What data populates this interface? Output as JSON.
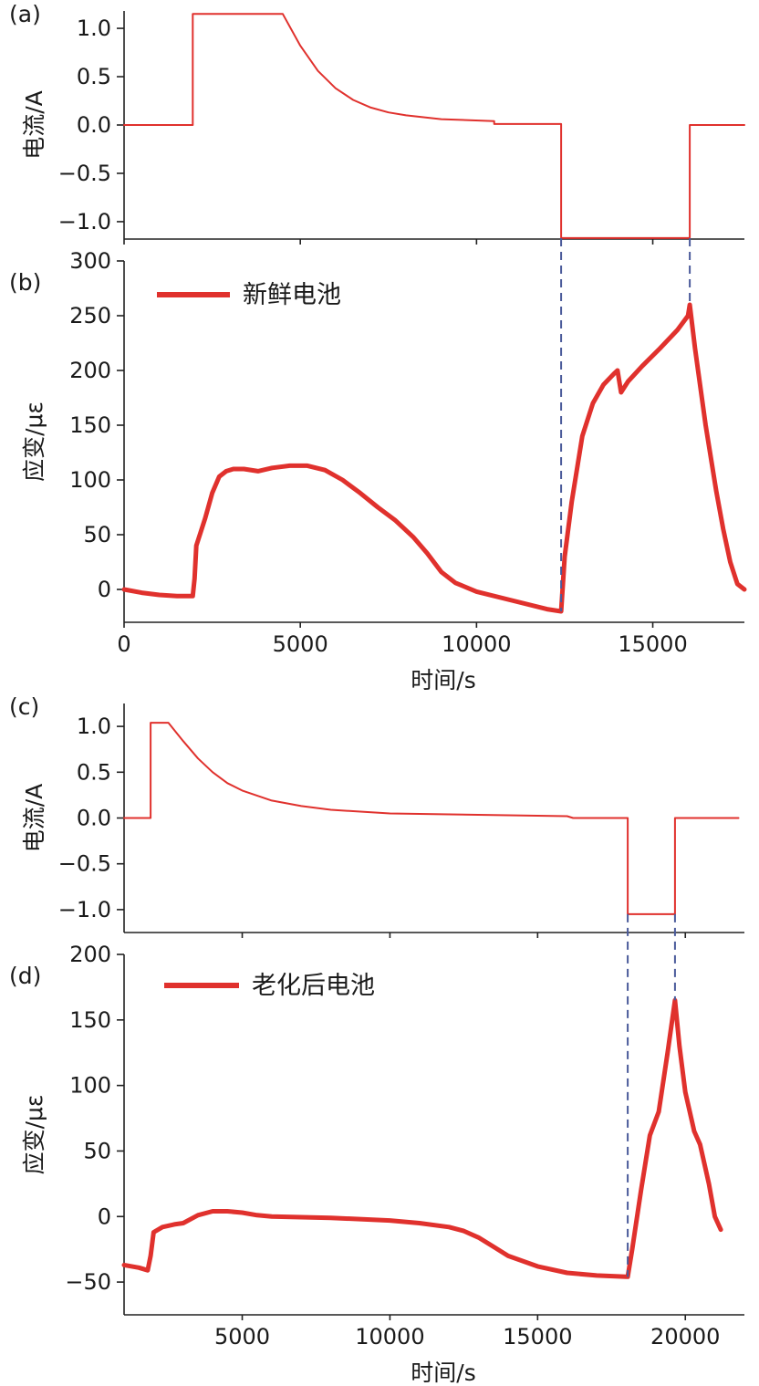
{
  "colors": {
    "line": "#e0312d",
    "dashed": "#4a5a9a",
    "axis": "#222222"
  },
  "chart_data": [
    {
      "panel": "(a)",
      "type": "line",
      "ylabel": "电流/A",
      "xlabel": "",
      "xlim": [
        0,
        17600
      ],
      "ylim": [
        -1.18,
        1.18
      ],
      "xticks": [
        0,
        5000,
        10000,
        15000
      ],
      "xtick_labels_shown": false,
      "yticks": [
        -1.0,
        -0.5,
        0.0,
        0.5,
        1.0
      ],
      "ytick_labels": [
        "−1.0",
        "−0.5",
        "0.0",
        "0.5",
        "1.0"
      ],
      "series": [
        {
          "x": [
            0,
            1950,
            1950,
            4500,
            5000,
            5500,
            6000,
            6500,
            7000,
            7500,
            8000,
            9000,
            10500,
            10500,
            12400,
            12400,
            16050,
            16050,
            17600
          ],
          "y": [
            0,
            0,
            1.15,
            1.15,
            0.82,
            0.56,
            0.38,
            0.26,
            0.18,
            0.13,
            0.1,
            0.06,
            0.04,
            0.01,
            0.01,
            -1.17,
            -1.17,
            0,
            0
          ]
        }
      ]
    },
    {
      "panel": "(b)",
      "type": "line",
      "ylabel": "应变/με",
      "xlabel": "时间/s",
      "xlim": [
        0,
        17600
      ],
      "ylim": [
        -30,
        300
      ],
      "xticks": [
        0,
        5000,
        10000,
        15000
      ],
      "xtick_labels": [
        "0",
        "5000",
        "10000",
        "15000"
      ],
      "yticks": [
        0,
        50,
        100,
        150,
        200,
        250,
        300
      ],
      "ytick_labels": [
        "0",
        "50",
        "100",
        "150",
        "200",
        "250",
        "300"
      ],
      "legend": "top-left",
      "series": [
        {
          "name": "新鲜电池",
          "x": [
            0,
            500,
            1000,
            1500,
            1950,
            2000,
            2050,
            2300,
            2500,
            2700,
            2900,
            3100,
            3400,
            3800,
            4200,
            4700,
            5200,
            5700,
            6200,
            6700,
            7200,
            7700,
            8200,
            8600,
            9000,
            9400,
            10000,
            11000,
            12000,
            12400,
            12500,
            12700,
            13000,
            13300,
            13600,
            13900,
            14000,
            14100,
            14300,
            14700,
            15200,
            15700,
            16000,
            16050,
            16200,
            16500,
            16800,
            17000,
            17200,
            17400,
            17600
          ],
          "y": [
            0,
            -3,
            -5,
            -6,
            -6,
            10,
            40,
            65,
            88,
            103,
            108,
            110,
            110,
            108,
            111,
            113,
            113,
            109,
            100,
            88,
            75,
            63,
            48,
            33,
            16,
            6,
            -2,
            -10,
            -18,
            -20,
            30,
            80,
            140,
            170,
            187,
            197,
            200,
            180,
            190,
            204,
            220,
            237,
            250,
            260,
            220,
            150,
            90,
            55,
            25,
            5,
            0
          ]
        }
      ]
    },
    {
      "panel": "(c)",
      "type": "line",
      "ylabel": "电流/A",
      "xlabel": "",
      "xlim": [
        1000,
        22000
      ],
      "ylim": [
        -1.25,
        1.25
      ],
      "xticks": [
        5000,
        10000,
        15000,
        20000
      ],
      "xtick_labels_shown": false,
      "yticks": [
        -1.0,
        -0.5,
        0.0,
        0.5,
        1.0
      ],
      "ytick_labels": [
        "−1.0",
        "−0.5",
        "0.0",
        "0.5",
        "1.0"
      ],
      "series": [
        {
          "x": [
            1000,
            1900,
            1900,
            2500,
            3000,
            3500,
            4000,
            4500,
            5000,
            6000,
            7000,
            8000,
            9000,
            10000,
            12000,
            14000,
            16000,
            16200,
            16200,
            18050,
            18050,
            19650,
            19650,
            21800
          ],
          "y": [
            0,
            0,
            1.04,
            1.04,
            0.84,
            0.65,
            0.5,
            0.38,
            0.3,
            0.19,
            0.13,
            0.09,
            0.07,
            0.05,
            0.04,
            0.03,
            0.02,
            0.0,
            0.0,
            0.0,
            -1.05,
            -1.05,
            0,
            0
          ]
        }
      ]
    },
    {
      "panel": "(d)",
      "type": "line",
      "ylabel": "应变/με",
      "xlabel": "时间/s",
      "xlim": [
        1000,
        22000
      ],
      "ylim": [
        -75,
        200
      ],
      "xticks": [
        5000,
        10000,
        15000,
        20000
      ],
      "xtick_labels": [
        "5000",
        "10000",
        "15000",
        "20000"
      ],
      "yticks": [
        -50,
        0,
        50,
        100,
        150,
        200
      ],
      "ytick_labels": [
        "−50",
        "0",
        "50",
        "100",
        "150",
        "200"
      ],
      "legend": "top-left",
      "series": [
        {
          "name": "老化后电池",
          "x": [
            1000,
            1500,
            1800,
            1900,
            2000,
            2300,
            2700,
            3000,
            3500,
            4000,
            4500,
            5000,
            5500,
            6000,
            8000,
            10000,
            11000,
            12000,
            12500,
            13000,
            13500,
            14000,
            15000,
            16000,
            17000,
            18000,
            18050,
            18200,
            18500,
            18800,
            19100,
            19400,
            19650,
            19800,
            20000,
            20300,
            20500,
            20800,
            21000,
            21200
          ],
          "y": [
            -37,
            -39,
            -41,
            -30,
            -12,
            -8,
            -6,
            -5,
            1,
            4,
            4,
            3,
            1,
            0,
            -1,
            -3,
            -5,
            -8,
            -11,
            -16,
            -23,
            -30,
            -38,
            -43,
            -45,
            -46,
            -46,
            -25,
            20,
            62,
            80,
            125,
            165,
            130,
            95,
            65,
            55,
            25,
            0,
            -10
          ]
        }
      ]
    }
  ]
}
